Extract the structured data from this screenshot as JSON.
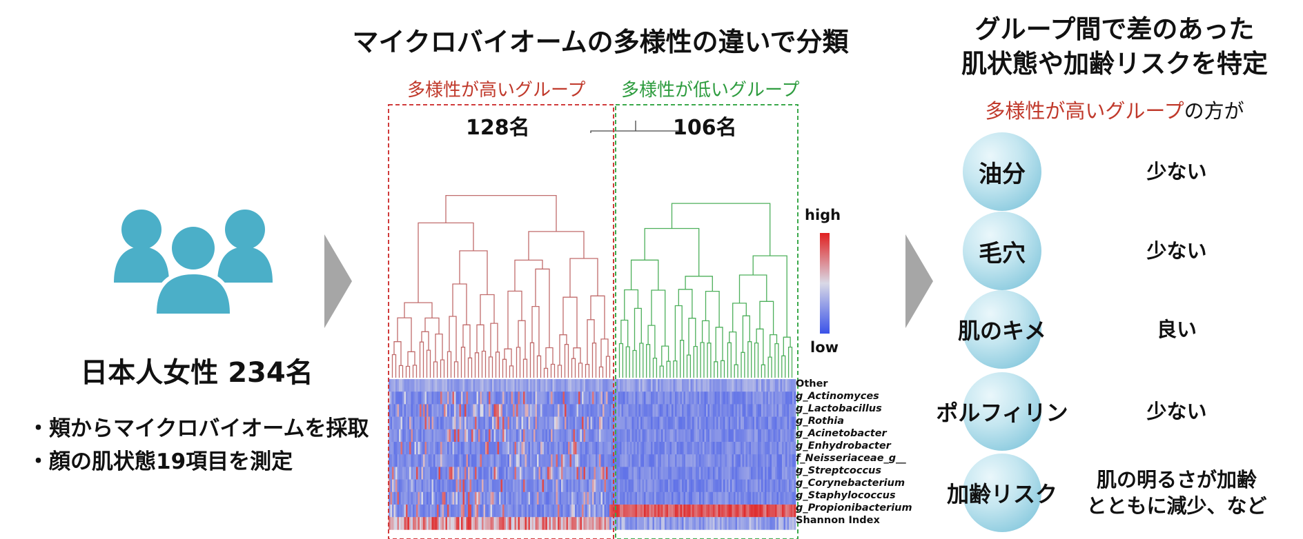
{
  "left": {
    "subject": "日本人女性 234名",
    "methods": [
      "・頬からマイクロバイオームを採取",
      "・顔の肌状態19項目を測定"
    ]
  },
  "center": {
    "title": "マイクロバイオームの多様性の違いで分類",
    "groups": [
      {
        "label": "多様性が高いグループ",
        "count": "128名",
        "color": "#c0392b"
      },
      {
        "label": "多様性が低いグループ",
        "count": "106名",
        "color": "#2e9c3f"
      }
    ],
    "legend": {
      "high": "high",
      "low": "low",
      "high_color": "#e02020",
      "mid_color": "#d9d9e6",
      "low_color": "#3a52e8"
    },
    "taxa": [
      "Other",
      "g_Actinomyces",
      "g_Lactobacillus",
      "g_Rothia",
      "g_Acinetobacter",
      "g_Enhydrobacter",
      "f_Neisseriaceae_g__",
      "g_Streptcoccus",
      "g_Corynebacterium",
      "g_Staphylococcus",
      "g_Propionibacterium",
      "Shannon Index"
    ]
  },
  "right": {
    "title_line1": "グループ間で差のあった",
    "title_line2": "肌状態や加齢リスクを特定",
    "subtitle_highlight": "多様性が高いグループ",
    "subtitle_rest": "の方が",
    "findings": [
      {
        "label": "油分",
        "value_line1": "少ない",
        "value_line2": ""
      },
      {
        "label": "毛穴",
        "value_line1": "少ない",
        "value_line2": ""
      },
      {
        "label": "肌のキメ",
        "value_line1": "良い",
        "value_line2": ""
      },
      {
        "label": "ポルフィリン",
        "value_line1": "少ない",
        "value_line2": ""
      },
      {
        "label": "加齢リスク",
        "value_line1": "肌の明るさが加齢",
        "value_line2": "とともに減少、など"
      }
    ]
  }
}
